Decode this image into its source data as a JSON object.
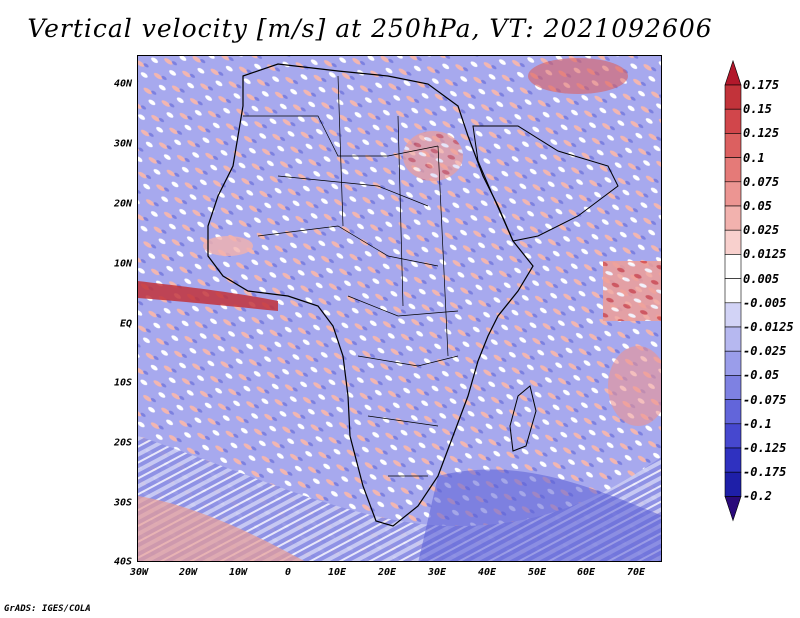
{
  "title": "Vertical velocity [m/s] at 250hPa, VT: 2021092606",
  "credit": "GrADS: IGES/COLA",
  "map": {
    "lat_ticks": [
      "40N",
      "30N",
      "20N",
      "10N",
      "EQ",
      "10S",
      "20S",
      "30S",
      "40S"
    ],
    "lon_ticks": [
      "30W",
      "20W",
      "10W",
      "0",
      "10E",
      "20E",
      "30E",
      "40E",
      "50E",
      "60E",
      "70E"
    ],
    "lat_range": [
      -40,
      45
    ],
    "lon_range": [
      -30,
      75
    ]
  },
  "colorbar": {
    "labels": [
      "0.175",
      "0.15",
      "0.125",
      "0.1",
      "0.075",
      "0.05",
      "0.025",
      "0.0125",
      "0.005",
      "-0.005",
      "-0.0125",
      "-0.025",
      "-0.05",
      "-0.075",
      "-0.1",
      "-0.125",
      "-0.175",
      "-0.2"
    ],
    "colors": [
      "#b2182b",
      "#c2333a",
      "#d1464b",
      "#dc6060",
      "#e57a78",
      "#ec9592",
      "#f2b2ae",
      "#f8d0cd",
      "#ffffff",
      "#ffffff",
      "#d2d3f6",
      "#b6b8f0",
      "#9a9dea",
      "#7e81e2",
      "#6265da",
      "#4648cf",
      "#2f31c0",
      "#1e1fa8",
      "#2a0a7a"
    ]
  }
}
